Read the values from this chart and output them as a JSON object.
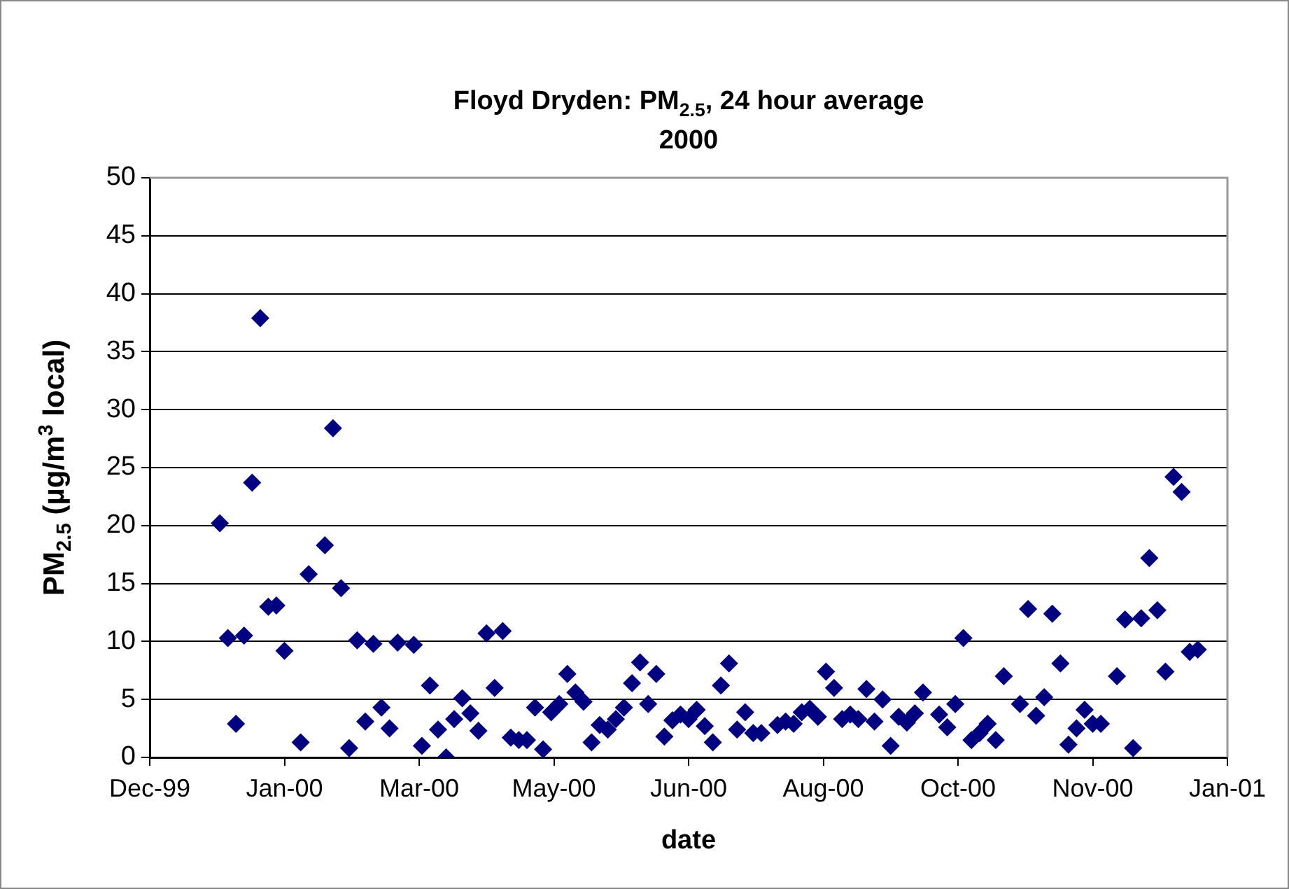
{
  "chart_data": {
    "type": "scatter",
    "title": "Floyd Dryden: PM$_{2.5}$, 24 hour average\n2000",
    "xlabel": "date",
    "ylabel": "PM$_{2.5}$ (µg/m$^{3}$ local)",
    "x": [
      "2000-01-03",
      "2000-01-06",
      "2000-01-09",
      "2000-01-12",
      "2000-01-15",
      "2000-01-18",
      "2000-01-21",
      "2000-01-24",
      "2000-01-27",
      "2000-02-02",
      "2000-02-05",
      "2000-02-11",
      "2000-02-14",
      "2000-02-17",
      "2000-02-20",
      "2000-02-23",
      "2000-02-26",
      "2000-02-29",
      "2000-03-03",
      "2000-03-06",
      "2000-03-09",
      "2000-03-15",
      "2000-03-18",
      "2000-03-21",
      "2000-03-24",
      "2000-03-27",
      "2000-03-30",
      "2000-04-02",
      "2000-04-05",
      "2000-04-08",
      "2000-04-11",
      "2000-04-14",
      "2000-04-17",
      "2000-04-20",
      "2000-04-23",
      "2000-04-26",
      "2000-04-29",
      "2000-05-02",
      "2000-05-05",
      "2000-05-08",
      "2000-05-11",
      "2000-05-14",
      "2000-05-17",
      "2000-05-20",
      "2000-05-23",
      "2000-05-26",
      "2000-05-29",
      "2000-06-01",
      "2000-06-04",
      "2000-06-07",
      "2000-06-10",
      "2000-06-13",
      "2000-06-16",
      "2000-06-19",
      "2000-06-22",
      "2000-06-25",
      "2000-06-28",
      "2000-07-01",
      "2000-07-04",
      "2000-07-07",
      "2000-07-10",
      "2000-07-13",
      "2000-07-16",
      "2000-07-19",
      "2000-07-22",
      "2000-07-28",
      "2000-07-31",
      "2000-08-03",
      "2000-08-06",
      "2000-08-09",
      "2000-08-12",
      "2000-08-15",
      "2000-08-18",
      "2000-08-21",
      "2000-08-24",
      "2000-08-27",
      "2000-08-30",
      "2000-09-02",
      "2000-09-05",
      "2000-09-08",
      "2000-09-11",
      "2000-09-14",
      "2000-09-17",
      "2000-09-20",
      "2000-09-26",
      "2000-09-29",
      "2000-10-02",
      "2000-10-05",
      "2000-10-08",
      "2000-10-11",
      "2000-10-14",
      "2000-10-17",
      "2000-10-20",
      "2000-10-26",
      "2000-10-29",
      "2000-11-01",
      "2000-11-04",
      "2000-11-07",
      "2000-11-10",
      "2000-11-13",
      "2000-11-16",
      "2000-11-19",
      "2000-11-22",
      "2000-11-25",
      "2000-12-01",
      "2000-12-04",
      "2000-12-07",
      "2000-12-10",
      "2000-12-13",
      "2000-12-16",
      "2000-12-19",
      "2000-12-22",
      "2000-12-25",
      "2000-12-28",
      "2000-12-31"
    ],
    "values": [
      20.2,
      10.3,
      2.9,
      10.5,
      23.7,
      37.9,
      13.0,
      13.1,
      9.2,
      1.3,
      15.8,
      18.3,
      28.4,
      14.6,
      0.8,
      10.1,
      3.1,
      9.8,
      4.3,
      2.5,
      9.9,
      9.7,
      1.0,
      6.2,
      2.4,
      0.0,
      3.3,
      5.1,
      3.8,
      2.3,
      10.7,
      6.0,
      10.9,
      1.7,
      1.5,
      1.5,
      4.3,
      0.7,
      3.9,
      4.6,
      7.2,
      5.6,
      4.8,
      1.3,
      2.8,
      2.4,
      3.3,
      4.3,
      6.4,
      8.2,
      4.6,
      7.2,
      1.8,
      3.2,
      3.7,
      3.3,
      4.1,
      2.7,
      1.3,
      6.2,
      8.1,
      2.4,
      3.9,
      2.1,
      2.1,
      2.8,
      3.1,
      2.9,
      3.9,
      4.2,
      3.5,
      7.4,
      6.0,
      3.3,
      3.7,
      3.3,
      5.9,
      3.1,
      5.0,
      1.0,
      3.5,
      3.0,
      3.8,
      5.6,
      3.7,
      2.6,
      4.6,
      10.3,
      1.5,
      2.1,
      2.9,
      1.5,
      7.0,
      4.6,
      12.8,
      3.6,
      5.2,
      12.4,
      8.1,
      1.1,
      2.5,
      4.1,
      2.9,
      2.9,
      7.0,
      11.9,
      0.8,
      12.0,
      17.2,
      12.7,
      7.4,
      24.2,
      22.9,
      9.1,
      9.3
    ],
    "color": "#000080",
    "marker": "diamond",
    "xlim": [
      "1999-12-08",
      "2001-01-11"
    ],
    "xticks": [
      {
        "value": "1999-12-08",
        "label": "Dec-99"
      },
      {
        "value": "2000-01-27",
        "label": "Jan-00"
      },
      {
        "value": "2000-03-17",
        "label": "Mar-00"
      },
      {
        "value": "2000-05-06",
        "label": "May-00"
      },
      {
        "value": "2000-06-25",
        "label": "Jun-00"
      },
      {
        "value": "2000-08-14",
        "label": "Aug-00"
      },
      {
        "value": "2000-10-03",
        "label": "Oct-00"
      },
      {
        "value": "2000-11-22",
        "label": "Nov-00"
      },
      {
        "value": "2001-01-11",
        "label": "Jan-01"
      }
    ],
    "ylim": [
      0,
      50
    ],
    "yticks": [
      0,
      5,
      10,
      15,
      20,
      25,
      30,
      35,
      40,
      45,
      50
    ],
    "grid": "y"
  }
}
